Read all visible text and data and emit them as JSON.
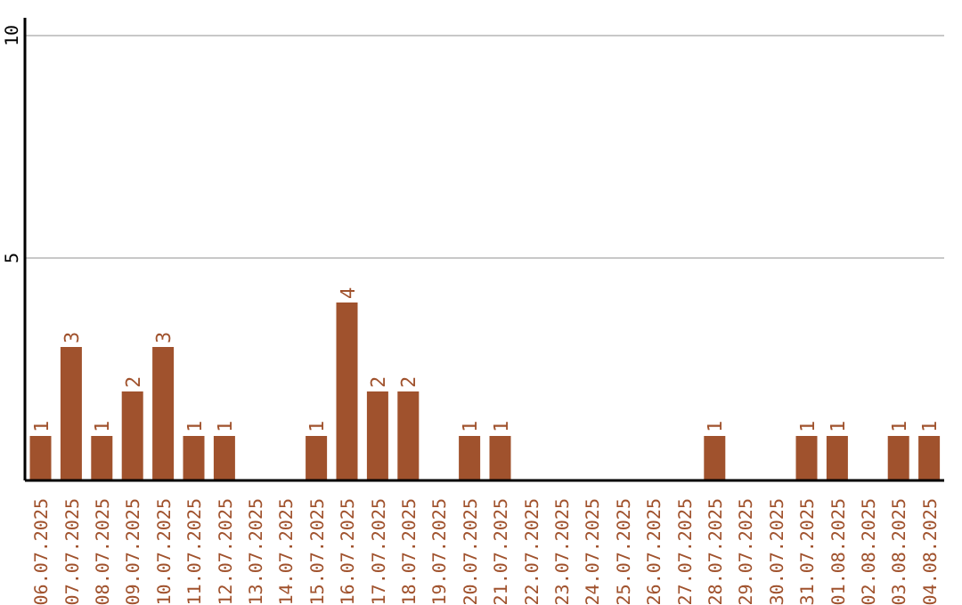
{
  "chart_data": {
    "type": "bar",
    "categories": [
      "06.07.2025",
      "07.07.2025",
      "08.07.2025",
      "09.07.2025",
      "10.07.2025",
      "11.07.2025",
      "12.07.2025",
      "13.07.2025",
      "14.07.2025",
      "15.07.2025",
      "16.07.2025",
      "17.07.2025",
      "18.07.2025",
      "19.07.2025",
      "20.07.2025",
      "21.07.2025",
      "22.07.2025",
      "23.07.2025",
      "24.07.2025",
      "25.07.2025",
      "26.07.2025",
      "27.07.2025",
      "28.07.2025",
      "29.07.2025",
      "30.07.2025",
      "31.07.2025",
      "01.08.2025",
      "02.08.2025",
      "03.08.2025",
      "04.08.2025"
    ],
    "values": [
      1,
      3,
      1,
      2,
      3,
      1,
      1,
      0,
      0,
      1,
      4,
      2,
      2,
      0,
      1,
      1,
      0,
      0,
      0,
      0,
      0,
      0,
      1,
      0,
      0,
      1,
      1,
      0,
      1,
      1
    ],
    "value_labels": [
      "1",
      "3",
      "1",
      "2",
      "3",
      "1",
      "1",
      null,
      null,
      "1",
      "4",
      "2",
      "2",
      null,
      "1",
      "1",
      null,
      null,
      null,
      null,
      null,
      null,
      "1",
      null,
      null,
      "1",
      "1",
      null,
      "1",
      "1"
    ],
    "color": "#a0522d",
    "ylim": [
      0,
      10.4
    ],
    "yticks": [
      {
        "value": 0,
        "label": null
      },
      5,
      10
    ],
    "grid": "y",
    "legend": false
  }
}
